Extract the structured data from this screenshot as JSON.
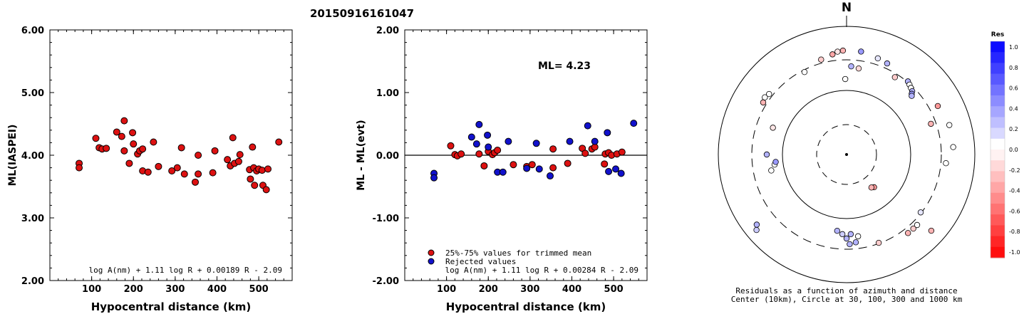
{
  "page_title": "20150916161047",
  "chart_data": [
    {
      "type": "scatter",
      "xlabel": "Hypocentral distance (km)",
      "ylabel": "ML(IASPEI)",
      "xlim": [
        0,
        580
      ],
      "ylim": [
        2.0,
        6.0
      ],
      "x_ticks": [
        "100",
        "200",
        "300",
        "400",
        "500"
      ],
      "y_ticks": [
        "2.00",
        "3.00",
        "4.00",
        "5.00",
        "6.00"
      ],
      "formula": "log A(nm) + 1.11 log R + 0.00189 R - 2.09",
      "marker_color": "#dd1111",
      "points": [
        [
          70,
          3.87
        ],
        [
          70,
          3.8
        ],
        [
          110,
          4.27
        ],
        [
          118,
          4.12
        ],
        [
          125,
          4.1
        ],
        [
          135,
          4.11
        ],
        [
          160,
          4.37
        ],
        [
          172,
          4.3
        ],
        [
          178,
          4.55
        ],
        [
          178,
          4.07
        ],
        [
          190,
          3.87
        ],
        [
          198,
          4.36
        ],
        [
          200,
          4.18
        ],
        [
          210,
          4.02
        ],
        [
          215,
          4.07
        ],
        [
          222,
          4.1
        ],
        [
          222,
          3.75
        ],
        [
          235,
          3.73
        ],
        [
          248,
          4.21
        ],
        [
          260,
          3.82
        ],
        [
          292,
          3.75
        ],
        [
          305,
          3.8
        ],
        [
          315,
          4.12
        ],
        [
          322,
          3.7
        ],
        [
          348,
          3.57
        ],
        [
          355,
          3.7
        ],
        [
          355,
          4.0
        ],
        [
          390,
          3.72
        ],
        [
          395,
          4.07
        ],
        [
          425,
          3.93
        ],
        [
          432,
          3.83
        ],
        [
          438,
          4.28
        ],
        [
          442,
          3.87
        ],
        [
          452,
          3.9
        ],
        [
          455,
          4.01
        ],
        [
          478,
          3.77
        ],
        [
          480,
          3.62
        ],
        [
          485,
          4.13
        ],
        [
          488,
          3.8
        ],
        [
          490,
          3.52
        ],
        [
          495,
          3.75
        ],
        [
          500,
          3.78
        ],
        [
          508,
          3.76
        ],
        [
          510,
          3.52
        ],
        [
          518,
          3.45
        ],
        [
          522,
          3.78
        ],
        [
          548,
          4.21
        ]
      ]
    },
    {
      "type": "scatter",
      "xlabel": "Hypocentral distance (km)",
      "ylabel": "ML - ML(evt)",
      "xlim": [
        0,
        580
      ],
      "ylim": [
        -2.0,
        2.0
      ],
      "x_ticks": [
        "100",
        "200",
        "300",
        "400",
        "500"
      ],
      "y_ticks": [
        "-2.00",
        "-1.00",
        "0.00",
        "1.00",
        "2.00"
      ],
      "annotation": "ML= 4.23",
      "formula": "log A(nm) + 1.11 log R + 0.00284 R - 2.09",
      "legend": [
        "25%-75% values for trimmed mean",
        "Rejected values"
      ],
      "legend_colors": [
        "#dd1111",
        "#1111cc"
      ],
      "trimmed_points": [
        [
          110,
          0.15
        ],
        [
          120,
          0.01
        ],
        [
          126,
          -0.01
        ],
        [
          135,
          0.02
        ],
        [
          178,
          0.02
        ],
        [
          190,
          -0.17
        ],
        [
          200,
          0.06
        ],
        [
          210,
          0.01
        ],
        [
          215,
          0.04
        ],
        [
          222,
          0.08
        ],
        [
          260,
          -0.15
        ],
        [
          292,
          -0.18
        ],
        [
          305,
          -0.15
        ],
        [
          355,
          -0.2
        ],
        [
          390,
          -0.13
        ],
        [
          425,
          0.11
        ],
        [
          432,
          0.03
        ],
        [
          448,
          0.1
        ],
        [
          455,
          0.13
        ],
        [
          478,
          -0.14
        ],
        [
          480,
          0.02
        ],
        [
          488,
          0.04
        ],
        [
          495,
          0.0
        ],
        [
          508,
          0.02
        ],
        [
          520,
          0.05
        ],
        [
          355,
          0.1
        ]
      ],
      "rejected_points": [
        [
          70,
          -0.29
        ],
        [
          70,
          -0.36
        ],
        [
          160,
          0.29
        ],
        [
          172,
          0.18
        ],
        [
          178,
          0.49
        ],
        [
          198,
          0.32
        ],
        [
          200,
          0.13
        ],
        [
          222,
          -0.27
        ],
        [
          235,
          -0.27
        ],
        [
          248,
          0.22
        ],
        [
          292,
          -0.21
        ],
        [
          315,
          0.19
        ],
        [
          322,
          -0.22
        ],
        [
          348,
          -0.33
        ],
        [
          395,
          0.22
        ],
        [
          438,
          0.47
        ],
        [
          455,
          0.22
        ],
        [
          485,
          0.36
        ],
        [
          488,
          -0.26
        ],
        [
          505,
          -0.22
        ],
        [
          518,
          -0.29
        ],
        [
          548,
          0.51
        ]
      ]
    },
    {
      "type": "scatter",
      "projection": "polar",
      "north_label": "N",
      "caption_line1": "Residuals as a function of azimuth and distance",
      "caption_line2": "Center (10km), Circle at 30, 100, 300 and 1000 km",
      "colorbar_title": "Res",
      "colorbar_ticks": [
        "1.0",
        "0.8",
        "0.6",
        "0.4",
        "0.2",
        "0.0",
        "-0.2",
        "-0.4",
        "-0.6",
        "-0.8",
        "-1.0"
      ],
      "stations": [
        {
          "az": -8,
          "r": 142,
          "res": -0.35
        },
        {
          "az": -5,
          "r": 145,
          "res": -0.1
        },
        {
          "az": -2,
          "r": 146,
          "res": -0.3
        },
        {
          "az": 8,
          "r": 146,
          "res": 0.4
        },
        {
          "az": 18,
          "r": 142,
          "res": 0.1
        },
        {
          "az": -15,
          "r": 138,
          "res": -0.2
        },
        {
          "az": -27,
          "r": 130,
          "res": 0.0
        },
        {
          "az": 3,
          "r": 124,
          "res": 0.3
        },
        {
          "az": 8,
          "r": 122,
          "res": -0.15
        },
        {
          "az": -1,
          "r": 106,
          "res": 0.0
        },
        {
          "az": 24,
          "r": 140,
          "res": 0.3
        },
        {
          "az": 32,
          "r": 128,
          "res": -0.2
        },
        {
          "az": 40,
          "r": 134,
          "res": 0.3
        },
        {
          "az": 42,
          "r": 132,
          "res": 0.0
        },
        {
          "az": 44,
          "r": 130,
          "res": 0.0
        },
        {
          "az": 46,
          "r": 128,
          "res": 0.3
        },
        {
          "az": 47,
          "r": 125,
          "res": 0.4
        },
        {
          "az": 48,
          "r": 123,
          "res": 0.3
        },
        {
          "az": 62,
          "r": 145,
          "res": -0.4
        },
        {
          "az": 70,
          "r": 126,
          "res": -0.3
        },
        {
          "az": 74,
          "r": 150,
          "res": 0.0
        },
        {
          "az": 86,
          "r": 150,
          "res": 0.0
        },
        {
          "az": 95,
          "r": 140,
          "res": 0.0
        },
        {
          "az": 132,
          "r": 160,
          "res": -0.3
        },
        {
          "az": 128,
          "r": 132,
          "res": 0.1
        },
        {
          "az": 142,
          "r": 140,
          "res": -0.3
        },
        {
          "az": 135,
          "r": 140,
          "res": 0.0
        },
        {
          "az": 138,
          "r": 140,
          "res": -0.2
        },
        {
          "az": 160,
          "r": 132,
          "res": -0.2
        },
        {
          "az": 140,
          "r": 60,
          "res": -0.4
        },
        {
          "az": 143,
          "r": 58,
          "res": -0.3
        },
        {
          "az": 172,
          "r": 116,
          "res": 0.0
        },
        {
          "az": 174,
          "r": 124,
          "res": 0.3
        },
        {
          "az": 177,
          "r": 112,
          "res": 0.3
        },
        {
          "az": 178,
          "r": 126,
          "res": 0.3
        },
        {
          "az": 180,
          "r": 118,
          "res": 0.3
        },
        {
          "az": 183,
          "r": 112,
          "res": 0.2
        },
        {
          "az": 187,
          "r": 108,
          "res": 0.3
        },
        {
          "az": 230,
          "r": 165,
          "res": 0.2
        },
        {
          "az": 232,
          "r": 160,
          "res": 0.3
        },
        {
          "az": 262,
          "r": 102,
          "res": 0.0
        },
        {
          "az": 264,
          "r": 100,
          "res": 0.4
        },
        {
          "az": 258,
          "r": 108,
          "res": 0.0
        },
        {
          "az": 270,
          "r": 112,
          "res": 0.3
        },
        {
          "az": 290,
          "r": 110,
          "res": -0.1
        },
        {
          "az": 302,
          "r": 138,
          "res": -0.3
        },
        {
          "az": 305,
          "r": 140,
          "res": 0.0
        },
        {
          "az": 308,
          "r": 138,
          "res": 0.0
        }
      ]
    }
  ]
}
